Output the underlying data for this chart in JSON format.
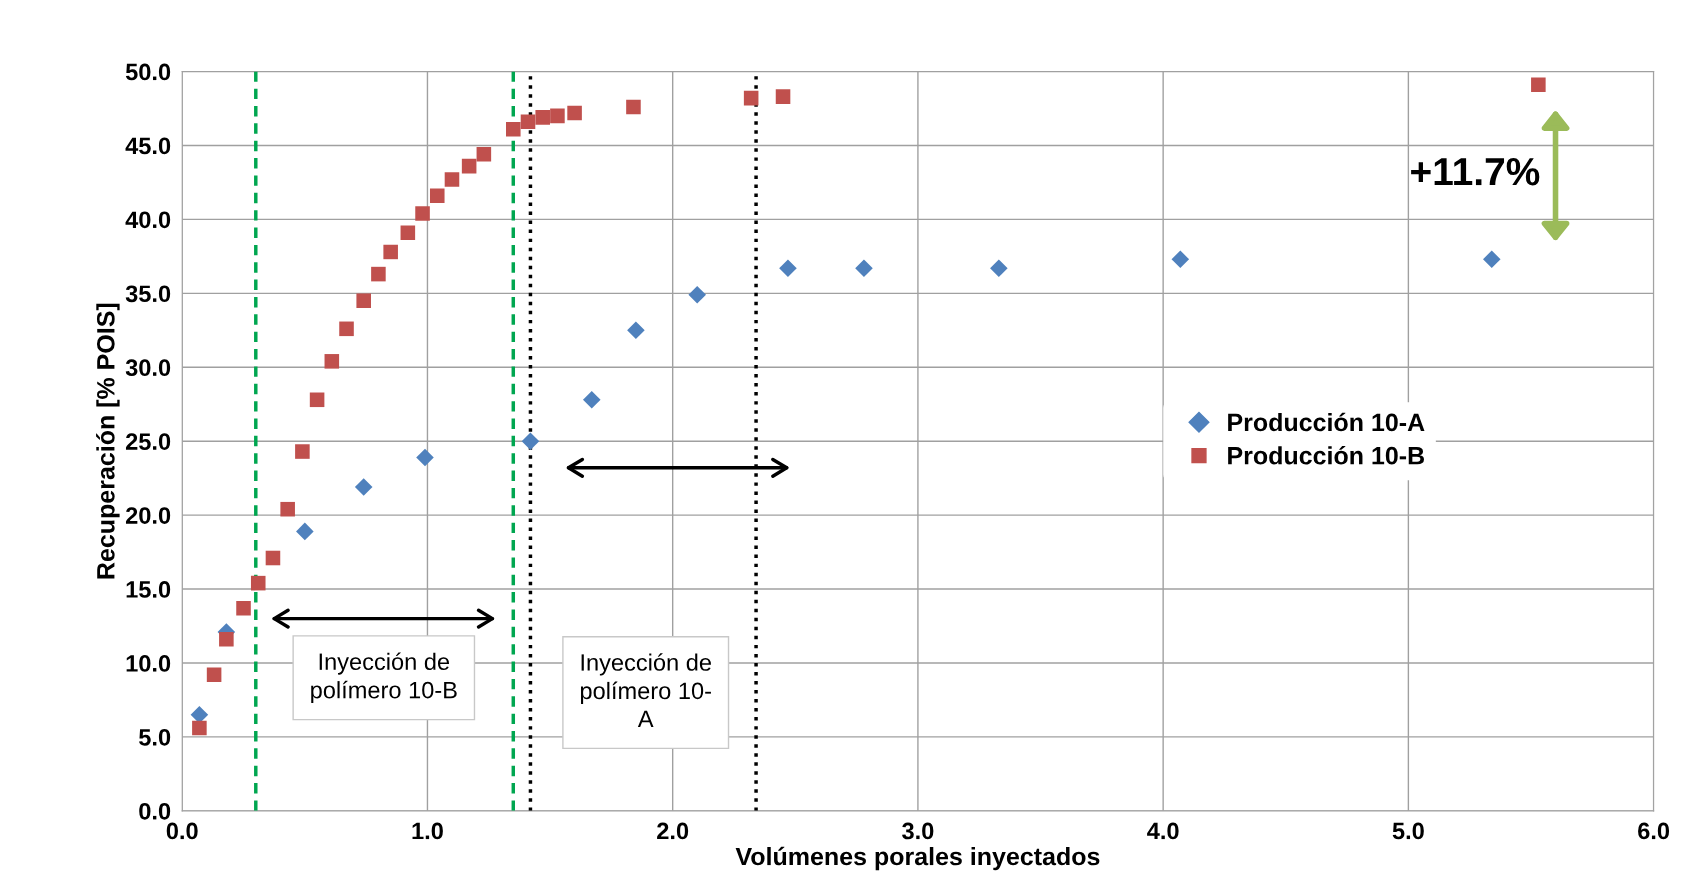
{
  "chart_data": {
    "type": "scatter",
    "xlabel": "Volúmenes porales inyectados",
    "ylabel": "Recuperación [% POIS]",
    "xlim": [
      0,
      6
    ],
    "ylim": [
      0,
      50
    ],
    "xticks": [
      {
        "value": 0,
        "label": "0.0"
      },
      {
        "value": 1,
        "label": "1.0"
      },
      {
        "value": 2,
        "label": "2.0"
      },
      {
        "value": 3,
        "label": "3.0"
      },
      {
        "value": 4,
        "label": "4.0"
      },
      {
        "value": 5,
        "label": "5.0"
      },
      {
        "value": 6,
        "label": "6.0"
      }
    ],
    "yticks": [
      {
        "value": 0,
        "label": "0.0"
      },
      {
        "value": 5,
        "label": "5.0"
      },
      {
        "value": 10,
        "label": "10.0"
      },
      {
        "value": 15,
        "label": "15.0"
      },
      {
        "value": 20,
        "label": "20.0"
      },
      {
        "value": 25,
        "label": "25.0"
      },
      {
        "value": 30,
        "label": "30.0"
      },
      {
        "value": 35,
        "label": "35.0"
      },
      {
        "value": 40,
        "label": "40.0"
      },
      {
        "value": 45,
        "label": "45.0"
      },
      {
        "value": 50,
        "label": "50.0"
      }
    ],
    "grid": true,
    "legend": "right",
    "series": [
      {
        "name": "Producción 10-A",
        "color": "#4f81bd",
        "marker": "diamond",
        "x": [
          0.07,
          0.18,
          0.5,
          0.74,
          0.99,
          1.42,
          1.67,
          1.85,
          2.1,
          2.47,
          2.78,
          3.33,
          4.07,
          5.34
        ],
        "values": [
          6.5,
          12.1,
          18.9,
          21.9,
          23.9,
          25.0,
          27.8,
          32.5,
          34.9,
          36.7,
          36.7,
          36.7,
          37.3,
          37.3
        ]
      },
      {
        "name": "Producción 10-B",
        "color": "#c0504d",
        "marker": "square",
        "x": [
          0.07,
          0.13,
          0.18,
          0.25,
          0.31,
          0.37,
          0.43,
          0.49,
          0.55,
          0.61,
          0.67,
          0.74,
          0.8,
          0.85,
          0.92,
          0.98,
          1.04,
          1.1,
          1.17,
          1.23,
          1.35,
          1.41,
          1.47,
          1.53,
          1.6,
          1.84,
          2.32,
          2.45,
          5.53
        ],
        "values": [
          5.6,
          9.2,
          11.6,
          13.7,
          15.4,
          17.1,
          20.4,
          24.3,
          27.8,
          30.4,
          32.6,
          34.5,
          36.3,
          37.8,
          39.1,
          40.4,
          41.6,
          42.7,
          43.6,
          44.4,
          46.1,
          46.6,
          46.9,
          47.0,
          47.2,
          47.6,
          48.2,
          48.3,
          49.1
        ]
      }
    ],
    "ref_lines": [
      {
        "axis": "x",
        "value": 0.3,
        "color": "#00a650",
        "line_style": "dashed"
      },
      {
        "axis": "x",
        "value": 1.35,
        "color": "#00a650",
        "line_style": "dashed"
      },
      {
        "axis": "x",
        "value": 1.42,
        "color": "#000000",
        "line_style": "dotted"
      },
      {
        "axis": "x",
        "value": 2.34,
        "color": "#000000",
        "line_style": "dotted"
      }
    ],
    "annotations": [
      "+11.7%",
      "Inyección de\npolímero 10-B",
      "Inyección de\npolímero 10-\nA"
    ]
  }
}
